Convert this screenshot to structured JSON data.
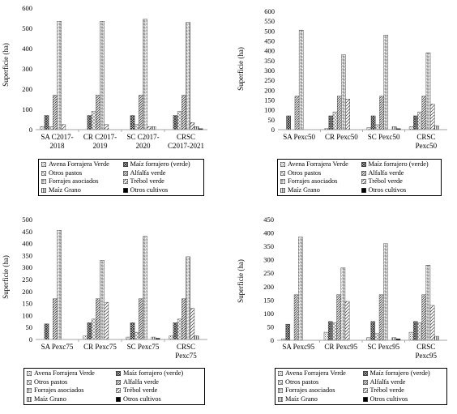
{
  "series_names": [
    "Avena Forrajera Verde",
    "Maíz forrajero (verde)",
    "Otros pastos",
    "Alfalfa verde",
    "Forrajes asociados",
    "Trébol verde",
    "Maíz Grano",
    "Otros cultivos"
  ],
  "y_axis_label": "Superficie (ha)",
  "chart_data": [
    {
      "type": "bar",
      "categories": [
        "SA C2017-2018",
        "CR C2017-2019",
        "SC C2017-2020",
        "CRSC C2017-2021"
      ],
      "category_lines": [
        [
          "SA C2017-",
          "2018"
        ],
        [
          "CR C2017-",
          "2019"
        ],
        [
          "SC C2017-",
          "2020"
        ],
        [
          "CRSC",
          "C2017-2021"
        ]
      ],
      "ylim": [
        0,
        600
      ],
      "yticks": [
        0,
        100,
        200,
        300,
        400,
        500,
        600
      ],
      "series": [
        {
          "name": "Avena Forrajera Verde",
          "values": [
            15,
            0,
            0,
            0
          ]
        },
        {
          "name": "Maíz forrajero (verde)",
          "values": [
            70,
            70,
            70,
            70
          ]
        },
        {
          "name": "Otros pastos",
          "values": [
            15,
            90,
            25,
            90
          ]
        },
        {
          "name": "Alfalfa verde",
          "values": [
            170,
            170,
            170,
            170
          ]
        },
        {
          "name": "Forrajes asociados",
          "values": [
            535,
            535,
            545,
            530
          ]
        },
        {
          "name": "Trébol verde",
          "values": [
            25,
            25,
            15,
            35
          ]
        },
        {
          "name": "Maíz Grano",
          "values": [
            0,
            0,
            15,
            15
          ]
        },
        {
          "name": "Otros cultivos",
          "values": [
            0,
            0,
            0,
            5
          ]
        }
      ]
    },
    {
      "type": "bar",
      "categories": [
        "SA Pexc50",
        "CR Pexc50",
        "SC Pexc50",
        "CRSC Pexc50"
      ],
      "category_lines": [
        [
          "SA Pexc50"
        ],
        [
          "CR Pexc50"
        ],
        [
          "SC Pexc50"
        ],
        [
          "CRSC",
          "Pexc50"
        ]
      ],
      "ylim": [
        0,
        600
      ],
      "yticks": [
        0,
        50,
        100,
        150,
        200,
        250,
        300,
        350,
        400,
        450,
        500,
        550,
        600
      ],
      "series": [
        {
          "name": "Avena Forrajera Verde",
          "values": [
            0,
            5,
            10,
            15
          ]
        },
        {
          "name": "Maíz forrajero (verde)",
          "values": [
            70,
            70,
            70,
            70
          ]
        },
        {
          "name": "Otros pastos",
          "values": [
            0,
            90,
            25,
            90
          ]
        },
        {
          "name": "Alfalfa verde",
          "values": [
            170,
            170,
            170,
            170
          ]
        },
        {
          "name": "Forrajes asociados",
          "values": [
            505,
            380,
            480,
            390
          ]
        },
        {
          "name": "Trébol verde",
          "values": [
            0,
            155,
            0,
            130
          ]
        },
        {
          "name": "Maíz Grano",
          "values": [
            0,
            0,
            15,
            20
          ]
        },
        {
          "name": "Otros cultivos",
          "values": [
            0,
            0,
            5,
            0
          ]
        }
      ]
    },
    {
      "type": "bar",
      "categories": [
        "SA Pexc75",
        "CR Pexc75",
        "SC Pexc75",
        "CRSC Pexc75"
      ],
      "category_lines": [
        [
          "SA Pexc75"
        ],
        [
          "CR Pexc75"
        ],
        [
          "SC Pexc75"
        ],
        [
          "CRSC",
          "Pexc75"
        ]
      ],
      "ylim": [
        0,
        500
      ],
      "yticks": [
        0,
        50,
        100,
        150,
        200,
        250,
        300,
        350,
        400,
        450,
        500
      ],
      "series": [
        {
          "name": "Avena Forrajera Verde",
          "values": [
            0,
            15,
            10,
            15
          ]
        },
        {
          "name": "Maíz forrajero (verde)",
          "values": [
            65,
            70,
            70,
            70
          ]
        },
        {
          "name": "Otros pastos",
          "values": [
            0,
            85,
            30,
            85
          ]
        },
        {
          "name": "Alfalfa verde",
          "values": [
            170,
            170,
            170,
            170
          ]
        },
        {
          "name": "Forrajes asociados",
          "values": [
            455,
            330,
            430,
            345
          ]
        },
        {
          "name": "Trébol verde",
          "values": [
            0,
            155,
            0,
            130
          ]
        },
        {
          "name": "Maíz Grano",
          "values": [
            0,
            0,
            10,
            15
          ]
        },
        {
          "name": "Otros cultivos",
          "values": [
            0,
            0,
            5,
            0
          ]
        }
      ]
    },
    {
      "type": "bar",
      "categories": [
        "SA Pexc95",
        "CR Pexc95",
        "SC Pexc95",
        "CRSC Pexc95"
      ],
      "category_lines": [
        [
          "SA Pexc95"
        ],
        [
          "CR Pexc95"
        ],
        [
          "SC Pexc95"
        ],
        [
          "CRSC",
          "Pexc95"
        ]
      ],
      "ylim": [
        0,
        450
      ],
      "yticks": [
        0,
        50,
        100,
        150,
        200,
        250,
        300,
        350,
        400,
        450
      ],
      "series": [
        {
          "name": "Avena Forrajera Verde",
          "values": [
            5,
            30,
            10,
            30
          ]
        },
        {
          "name": "Maíz forrajero (verde)",
          "values": [
            60,
            70,
            70,
            70
          ]
        },
        {
          "name": "Otros pastos",
          "values": [
            0,
            65,
            25,
            65
          ]
        },
        {
          "name": "Alfalfa verde",
          "values": [
            170,
            170,
            170,
            170
          ]
        },
        {
          "name": "Forrajes asociados",
          "values": [
            385,
            270,
            360,
            280
          ]
        },
        {
          "name": "Trébol verde",
          "values": [
            0,
            145,
            0,
            130
          ]
        },
        {
          "name": "Maíz Grano",
          "values": [
            0,
            0,
            10,
            15
          ]
        },
        {
          "name": "Otros cultivos",
          "values": [
            0,
            0,
            5,
            0
          ]
        }
      ]
    }
  ]
}
